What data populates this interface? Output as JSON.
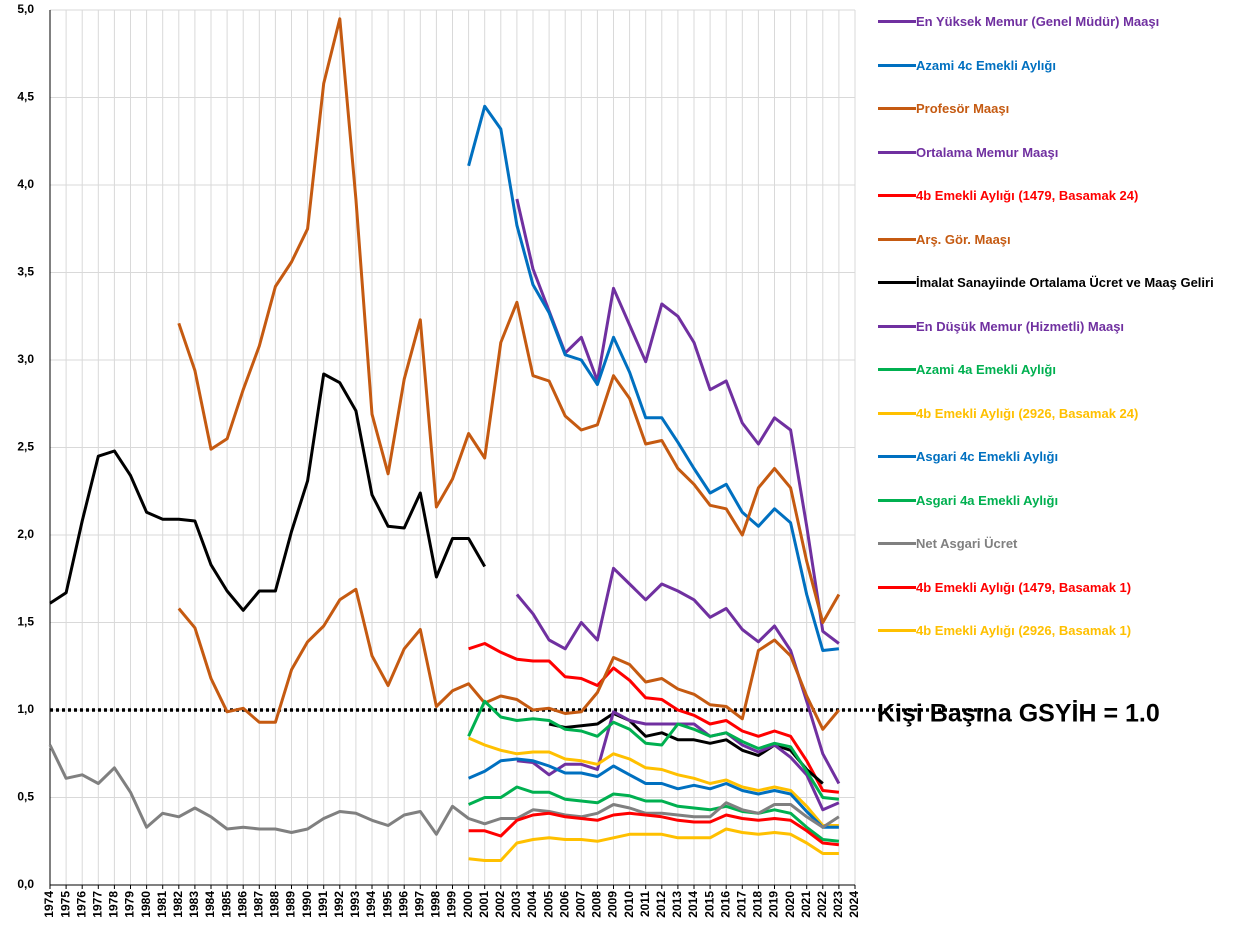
{
  "chart_data": {
    "type": "line",
    "categories": [
      "1974",
      "1975",
      "1976",
      "1977",
      "1978",
      "1979",
      "1980",
      "1981",
      "1982",
      "1983",
      "1984",
      "1985",
      "1986",
      "1987",
      "1988",
      "1989",
      "1990",
      "1991",
      "1992",
      "1993",
      "1994",
      "1995",
      "1996",
      "1997",
      "1998",
      "1999",
      "2000",
      "2001",
      "2002",
      "2003",
      "2004",
      "2005",
      "2006",
      "2007",
      "2008",
      "2009",
      "2010",
      "2011",
      "2012",
      "2013",
      "2014",
      "2015",
      "2016",
      "2017",
      "2018",
      "2019",
      "2020",
      "2021",
      "2022",
      "2023",
      "2024"
    ],
    "ylim": [
      0,
      5
    ],
    "yticks": [
      {
        "value": 0,
        "label": "0,0"
      },
      {
        "value": 0.5,
        "label": "0,5"
      },
      {
        "value": 1,
        "label": "1,0"
      },
      {
        "value": 1.5,
        "label": "1,5"
      },
      {
        "value": 2,
        "label": "2,0"
      },
      {
        "value": 2.5,
        "label": "2,5"
      },
      {
        "value": 3,
        "label": "3,0"
      },
      {
        "value": 3.5,
        "label": "3,5"
      },
      {
        "value": 4,
        "label": "4,0"
      },
      {
        "value": 4.5,
        "label": "4,5"
      },
      {
        "value": 5,
        "label": "5,0"
      }
    ],
    "grid": true,
    "reference_line": {
      "value": 1,
      "label": "Kişi Başına GSYİH = 1.0"
    },
    "series": [
      {
        "name": "En Yüksek Memur (Genel Müdür) Maaşı",
        "color": "#7030a0",
        "values": [
          null,
          null,
          null,
          null,
          null,
          null,
          null,
          null,
          null,
          null,
          null,
          null,
          null,
          null,
          null,
          null,
          null,
          null,
          null,
          null,
          null,
          null,
          null,
          null,
          null,
          null,
          null,
          null,
          null,
          3.92,
          3.52,
          3.28,
          3.04,
          3.13,
          2.88,
          3.41,
          3.2,
          2.99,
          3.32,
          3.25,
          3.1,
          2.83,
          2.88,
          2.64,
          2.52,
          2.67,
          2.6,
          2.05,
          1.45,
          1.38,
          null
        ]
      },
      {
        "name": "Azami 4c Emekli Aylığı",
        "color": "#0070c0",
        "values": [
          null,
          null,
          null,
          null,
          null,
          null,
          null,
          null,
          null,
          null,
          null,
          null,
          null,
          null,
          null,
          null,
          null,
          null,
          null,
          null,
          null,
          null,
          null,
          null,
          null,
          null,
          4.11,
          4.45,
          4.32,
          3.77,
          3.43,
          3.27,
          3.03,
          3.0,
          2.86,
          3.13,
          2.93,
          2.67,
          2.67,
          2.53,
          2.38,
          2.24,
          2.29,
          2.13,
          2.05,
          2.15,
          2.07,
          1.66,
          1.34,
          1.35,
          null
        ]
      },
      {
        "name": "Profesör Maaşı",
        "color": "#c55a11",
        "values": [
          null,
          null,
          null,
          null,
          null,
          null,
          null,
          null,
          3.21,
          2.94,
          2.49,
          2.55,
          2.83,
          3.08,
          3.42,
          3.56,
          3.75,
          4.58,
          4.95,
          3.92,
          2.69,
          2.35,
          2.89,
          3.23,
          2.16,
          2.32,
          2.58,
          2.44,
          3.1,
          3.33,
          2.91,
          2.88,
          2.68,
          2.6,
          2.63,
          2.91,
          2.78,
          2.52,
          2.54,
          2.38,
          2.29,
          2.17,
          2.15,
          2.0,
          2.27,
          2.38,
          2.27,
          1.85,
          1.5,
          1.66,
          null
        ]
      },
      {
        "name": "Ortalama Memur Maaşı",
        "color": "#7030a0",
        "values": [
          null,
          null,
          null,
          null,
          null,
          null,
          null,
          null,
          null,
          null,
          null,
          null,
          null,
          null,
          null,
          null,
          null,
          null,
          null,
          null,
          null,
          null,
          null,
          null,
          null,
          null,
          null,
          null,
          null,
          1.66,
          1.55,
          1.4,
          1.35,
          1.5,
          1.4,
          1.81,
          1.72,
          1.63,
          1.72,
          1.68,
          1.63,
          1.53,
          1.58,
          1.46,
          1.39,
          1.48,
          1.34,
          1.05,
          0.75,
          0.58,
          null
        ]
      },
      {
        "name": "4b Emekli Aylığı (1479, Basamak 24)",
        "color": "#ff0000",
        "values": [
          null,
          null,
          null,
          null,
          null,
          null,
          null,
          null,
          null,
          null,
          null,
          null,
          null,
          null,
          null,
          null,
          null,
          null,
          null,
          null,
          null,
          null,
          null,
          null,
          null,
          null,
          1.35,
          1.38,
          1.33,
          1.29,
          1.28,
          1.28,
          1.19,
          1.18,
          1.14,
          1.24,
          1.17,
          1.07,
          1.06,
          1.0,
          0.97,
          0.92,
          0.94,
          0.88,
          0.85,
          0.88,
          0.85,
          0.71,
          0.54,
          0.53,
          null
        ]
      },
      {
        "name": "Arş. Gör. Maaşı",
        "color": "#c55a11",
        "values": [
          null,
          null,
          null,
          null,
          null,
          null,
          null,
          null,
          1.58,
          1.47,
          1.18,
          0.99,
          1.01,
          0.93,
          0.93,
          1.23,
          1.39,
          1.48,
          1.63,
          1.69,
          1.31,
          1.14,
          1.35,
          1.46,
          1.02,
          1.11,
          1.15,
          1.04,
          1.08,
          1.06,
          1.0,
          1.01,
          0.98,
          0.99,
          1.1,
          1.3,
          1.26,
          1.16,
          1.18,
          1.12,
          1.09,
          1.03,
          1.02,
          0.95,
          1.34,
          1.4,
          1.31,
          1.08,
          0.89,
          1.0,
          null
        ]
      },
      {
        "name": "İmalat Sanayiinde Ortalama Ücret ve Maaş Geliri",
        "color": "#000000",
        "values": [
          1.61,
          1.67,
          2.08,
          2.45,
          2.48,
          2.34,
          2.13,
          2.09,
          2.09,
          2.08,
          1.83,
          1.68,
          1.57,
          1.68,
          1.68,
          2.02,
          2.31,
          2.92,
          2.87,
          2.71,
          2.23,
          2.05,
          2.04,
          2.24,
          1.76,
          1.98,
          1.98,
          1.82,
          null,
          null,
          null,
          0.92,
          0.9,
          0.91,
          0.92,
          0.98,
          0.94,
          0.85,
          0.87,
          0.83,
          0.83,
          0.81,
          0.83,
          0.77,
          0.74,
          0.8,
          0.77,
          0.66,
          0.58,
          null,
          null
        ]
      },
      {
        "name": "En Düşük Memur (Hizmetli) Maaşı",
        "color": "#7030a0",
        "values": [
          null,
          null,
          null,
          null,
          null,
          null,
          null,
          null,
          null,
          null,
          null,
          null,
          null,
          null,
          null,
          null,
          null,
          null,
          null,
          null,
          null,
          null,
          null,
          null,
          null,
          null,
          null,
          null,
          null,
          0.71,
          0.7,
          0.63,
          0.69,
          0.69,
          0.66,
          0.99,
          0.94,
          0.92,
          0.92,
          0.92,
          0.92,
          0.85,
          0.87,
          0.8,
          0.76,
          0.8,
          0.73,
          0.63,
          0.43,
          0.47,
          null
        ]
      },
      {
        "name": "Azami 4a Emekli Aylığı",
        "color": "#00b050",
        "values": [
          null,
          null,
          null,
          null,
          null,
          null,
          null,
          null,
          null,
          null,
          null,
          null,
          null,
          null,
          null,
          null,
          null,
          null,
          null,
          null,
          null,
          null,
          null,
          null,
          null,
          null,
          0.85,
          1.05,
          0.96,
          0.94,
          0.95,
          0.94,
          0.89,
          0.88,
          0.85,
          0.93,
          0.89,
          0.81,
          0.8,
          0.92,
          0.89,
          0.85,
          0.87,
          0.82,
          0.78,
          0.81,
          0.79,
          0.65,
          0.5,
          0.49,
          null
        ]
      },
      {
        "name": "4b Emekli Aylığı (2926, Basamak 24)",
        "color": "#ffc000",
        "values": [
          null,
          null,
          null,
          null,
          null,
          null,
          null,
          null,
          null,
          null,
          null,
          null,
          null,
          null,
          null,
          null,
          null,
          null,
          null,
          null,
          null,
          null,
          null,
          null,
          null,
          null,
          0.84,
          0.8,
          0.77,
          0.75,
          0.76,
          0.76,
          0.72,
          0.71,
          0.69,
          0.75,
          0.72,
          0.67,
          0.66,
          0.63,
          0.61,
          0.58,
          0.6,
          0.56,
          0.54,
          0.56,
          0.54,
          0.45,
          0.34,
          0.34,
          null
        ]
      },
      {
        "name": "Asgari 4c Emekli Aylığı",
        "color": "#0070c0",
        "values": [
          null,
          null,
          null,
          null,
          null,
          null,
          null,
          null,
          null,
          null,
          null,
          null,
          null,
          null,
          null,
          null,
          null,
          null,
          null,
          null,
          null,
          null,
          null,
          null,
          null,
          null,
          0.61,
          0.65,
          0.71,
          0.72,
          0.71,
          0.68,
          0.64,
          0.64,
          0.62,
          0.68,
          0.63,
          0.58,
          0.58,
          0.55,
          0.57,
          0.55,
          0.58,
          0.54,
          0.52,
          0.54,
          0.52,
          0.42,
          0.33,
          0.33,
          null
        ]
      },
      {
        "name": "Asgari 4a Emekli Aylığı",
        "color": "#00b050",
        "values": [
          null,
          null,
          null,
          null,
          null,
          null,
          null,
          null,
          null,
          null,
          null,
          null,
          null,
          null,
          null,
          null,
          null,
          null,
          null,
          null,
          null,
          null,
          null,
          null,
          null,
          null,
          0.46,
          0.5,
          0.5,
          0.56,
          0.53,
          0.53,
          0.49,
          0.48,
          0.47,
          0.52,
          0.51,
          0.48,
          0.48,
          0.45,
          0.44,
          0.43,
          0.45,
          0.42,
          0.41,
          0.43,
          0.41,
          0.33,
          0.26,
          0.25,
          null
        ]
      },
      {
        "name": "Net Asgari Ücret",
        "color": "#808080",
        "values": [
          0.8,
          0.61,
          0.63,
          0.58,
          0.67,
          0.53,
          0.33,
          0.41,
          0.39,
          0.44,
          0.39,
          0.32,
          0.33,
          0.32,
          0.32,
          0.3,
          0.32,
          0.38,
          0.42,
          0.41,
          0.37,
          0.34,
          0.4,
          0.42,
          0.29,
          0.45,
          0.38,
          0.35,
          0.38,
          0.38,
          0.43,
          0.42,
          0.4,
          0.39,
          0.41,
          0.46,
          0.44,
          0.41,
          0.41,
          0.4,
          0.39,
          0.39,
          0.47,
          0.43,
          0.41,
          0.46,
          0.46,
          0.39,
          0.33,
          0.39,
          null
        ]
      },
      {
        "name": "4b Emekli Aylığı (1479, Basamak 1)",
        "color": "#ff0000",
        "values": [
          null,
          null,
          null,
          null,
          null,
          null,
          null,
          null,
          null,
          null,
          null,
          null,
          null,
          null,
          null,
          null,
          null,
          null,
          null,
          null,
          null,
          null,
          null,
          null,
          null,
          null,
          0.31,
          0.31,
          0.28,
          0.37,
          0.4,
          0.41,
          0.39,
          0.38,
          0.37,
          0.4,
          0.41,
          0.4,
          0.39,
          0.37,
          0.36,
          0.36,
          0.4,
          0.38,
          0.37,
          0.38,
          0.37,
          0.31,
          0.24,
          0.23,
          null
        ]
      },
      {
        "name": "4b Emekli Aylığı (2926, Basamak 1)",
        "color": "#ffc000",
        "values": [
          null,
          null,
          null,
          null,
          null,
          null,
          null,
          null,
          null,
          null,
          null,
          null,
          null,
          null,
          null,
          null,
          null,
          null,
          null,
          null,
          null,
          null,
          null,
          null,
          null,
          null,
          0.15,
          0.14,
          0.14,
          0.24,
          0.26,
          0.27,
          0.26,
          0.26,
          0.25,
          0.27,
          0.29,
          0.29,
          0.29,
          0.27,
          0.27,
          0.27,
          0.32,
          0.3,
          0.29,
          0.3,
          0.29,
          0.24,
          0.18,
          0.18,
          null
        ]
      }
    ]
  }
}
